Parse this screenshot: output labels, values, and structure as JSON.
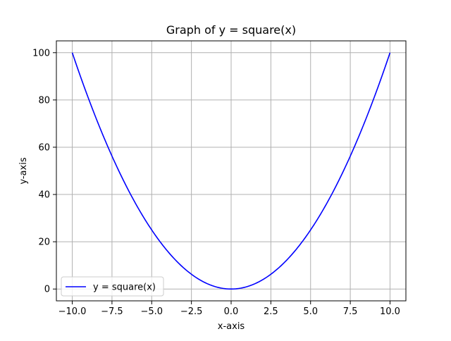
{
  "chart_data": {
    "type": "line",
    "title": "Graph of y = square(x)",
    "xlabel": "x-axis",
    "ylabel": "y-axis",
    "xlim": [
      -11,
      11
    ],
    "ylim": [
      -5,
      105
    ],
    "grid": true,
    "legend_position": "lower-left",
    "x_ticks": [
      -10,
      -7.5,
      -5,
      -2.5,
      0,
      2.5,
      5,
      7.5,
      10
    ],
    "x_tick_labels": [
      "−10.0",
      "−7.5",
      "−5.0",
      "−2.5",
      "0.0",
      "2.5",
      "5.0",
      "7.5",
      "10.0"
    ],
    "y_ticks": [
      0,
      20,
      40,
      60,
      80,
      100
    ],
    "y_tick_labels": [
      "0",
      "20",
      "40",
      "60",
      "80",
      "100"
    ],
    "series": [
      {
        "name": "y = square(x)",
        "color": "#0000ff",
        "function": "x^2",
        "x": [
          -10,
          -9,
          -8,
          -7,
          -6,
          -5,
          -4,
          -3,
          -2,
          -1,
          0,
          1,
          2,
          3,
          4,
          5,
          6,
          7,
          8,
          9,
          10
        ],
        "y": [
          100,
          81,
          64,
          49,
          36,
          25,
          16,
          9,
          4,
          1,
          0,
          1,
          4,
          9,
          16,
          25,
          36,
          49,
          64,
          81,
          100
        ]
      }
    ]
  },
  "colors": {
    "grid": "#b0b0b0",
    "axes": "#000000",
    "legend_border": "#cccccc"
  }
}
